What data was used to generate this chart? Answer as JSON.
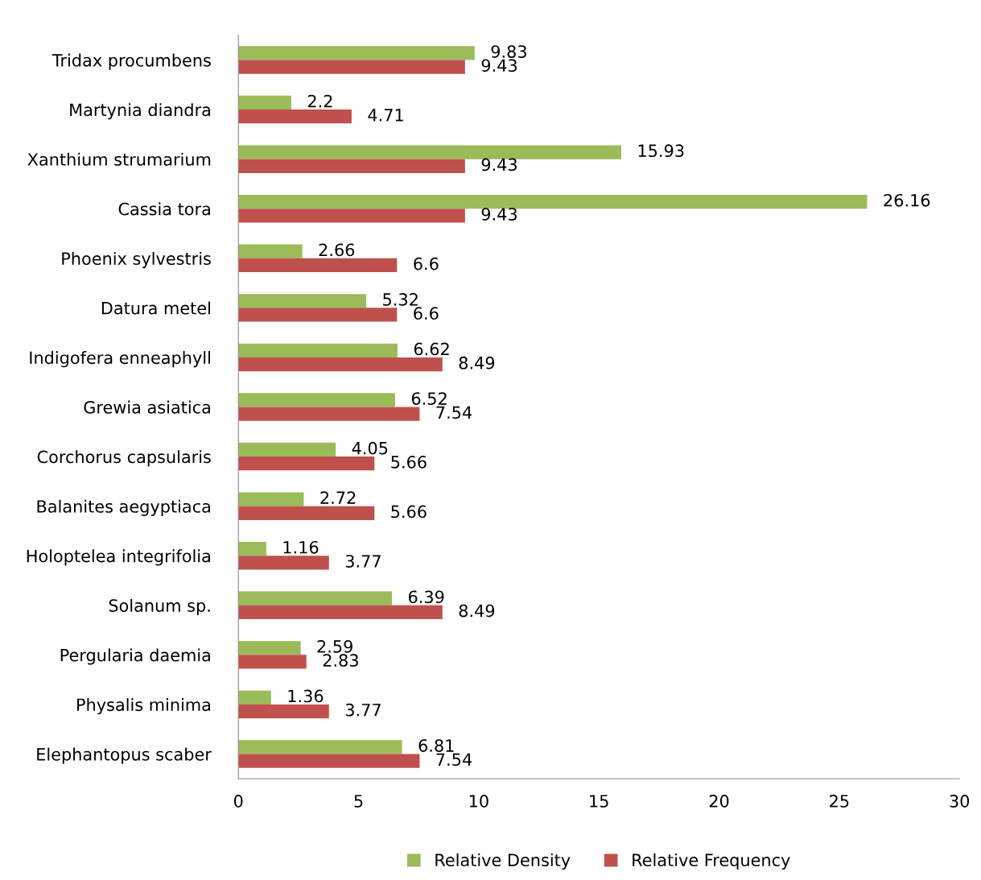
{
  "chart_data": {
    "type": "bar",
    "orientation": "horizontal",
    "categories": [
      "Tridax procumbens",
      "Martynia diandra",
      "Xanthium strumarium",
      "Cassia tora",
      "Phoenix sylvestris",
      "Datura metel",
      "Indigofera enneaphyll",
      "Grewia asiatica",
      "Corchorus capsularis",
      "Balanites aegyptiaca",
      "Holoptelea integrifolia",
      "Solanum sp.",
      "Pergularia daemia",
      "Physalis minima",
      "Elephantopus scaber"
    ],
    "series": [
      {
        "name": "Relative Density",
        "color": "#9bbb59",
        "values": [
          9.83,
          2.2,
          15.93,
          26.16,
          2.66,
          5.32,
          6.62,
          6.52,
          4.05,
          2.72,
          1.16,
          6.39,
          2.59,
          1.36,
          6.81
        ]
      },
      {
        "name": "Relative Frequency",
        "color": "#c0504d",
        "values": [
          9.43,
          4.71,
          9.43,
          9.43,
          6.6,
          6.6,
          8.49,
          7.54,
          5.66,
          5.66,
          3.77,
          8.49,
          2.83,
          3.77,
          7.54
        ]
      }
    ],
    "xlim": [
      0,
      30
    ],
    "xticks": [
      0,
      5,
      10,
      15,
      20,
      25,
      30
    ],
    "grid": false,
    "legend": "bottom",
    "data_labels": true
  }
}
